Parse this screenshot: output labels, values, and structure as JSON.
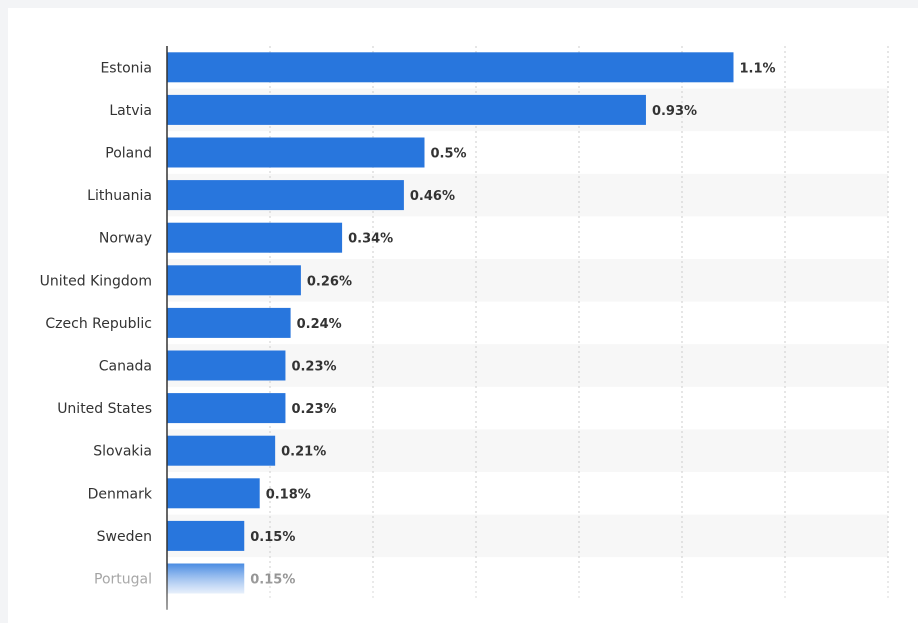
{
  "chart_data": {
    "type": "bar",
    "orientation": "horizontal",
    "categories": [
      "Estonia",
      "Latvia",
      "Poland",
      "Lithuania",
      "Norway",
      "United Kingdom",
      "Czech Republic",
      "Canada",
      "United States",
      "Slovakia",
      "Denmark",
      "Sweden",
      "Portugal"
    ],
    "values": [
      1.1,
      0.93,
      0.5,
      0.46,
      0.34,
      0.26,
      0.24,
      0.23,
      0.23,
      0.21,
      0.18,
      0.15,
      0.15
    ],
    "value_labels": [
      "1.1%",
      "0.93%",
      "0.5%",
      "0.46%",
      "0.34%",
      "0.26%",
      "0.24%",
      "0.23%",
      "0.23%",
      "0.21%",
      "0.18%",
      "0.15%",
      "0.15%"
    ],
    "xlim": [
      0,
      1.4
    ],
    "grid": true,
    "title": "",
    "xlabel": "",
    "ylabel": "",
    "colors": {
      "bar": "#2876dd",
      "label": "#333333",
      "value": "#333333",
      "gridline": "#cccccc",
      "axis": "#333333",
      "band": "#f7f7f7"
    }
  }
}
